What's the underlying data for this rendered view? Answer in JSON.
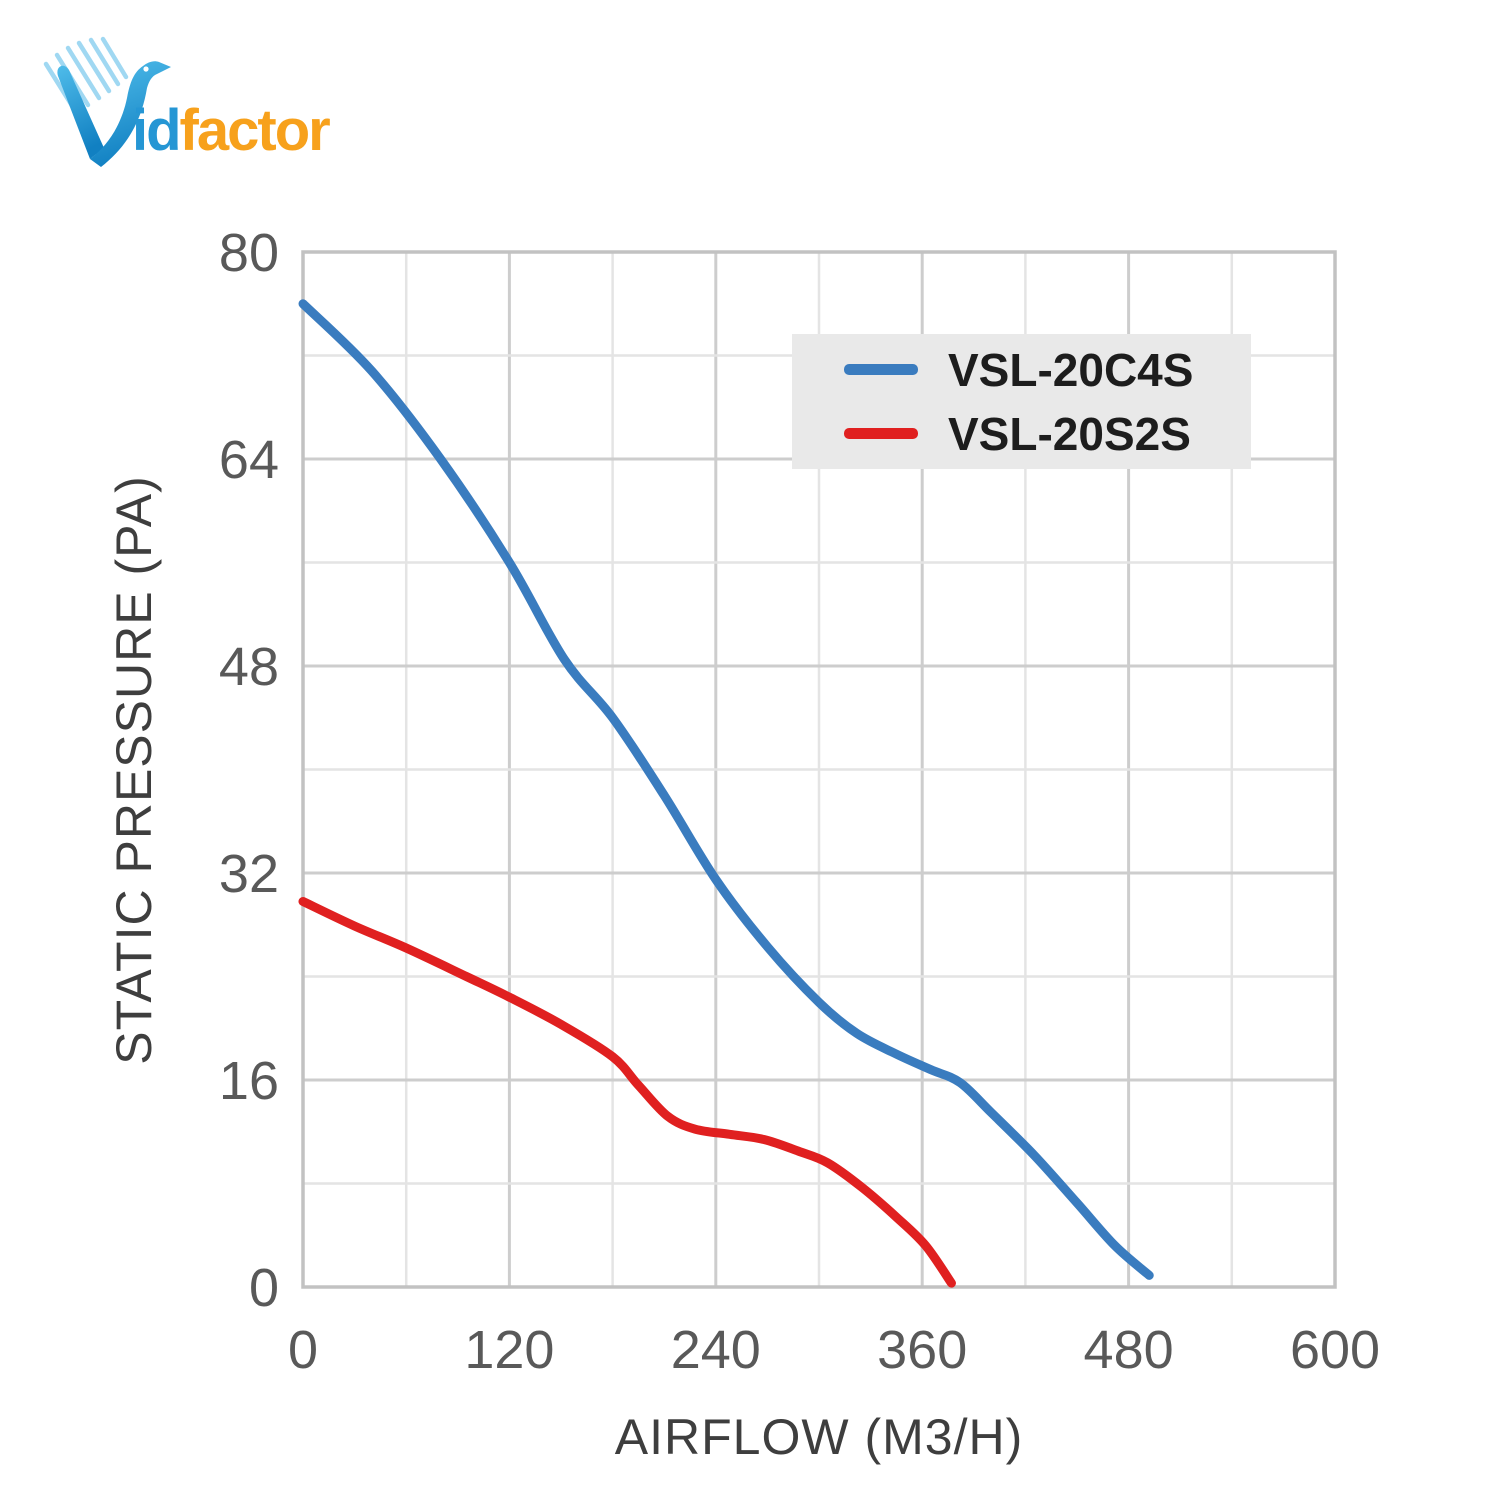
{
  "logo": {
    "text_id": "id",
    "text_factor": "factor",
    "blue": "#2596d4",
    "orange": "#f7a11c"
  },
  "chart_data": {
    "type": "line",
    "title": "",
    "xlabel": "AIRFLOW (M3/H)",
    "ylabel": "STATIC PRESSURE (PA)",
    "xlim": [
      0,
      600
    ],
    "ylim": [
      0,
      80
    ],
    "xticks": [
      0,
      120,
      240,
      360,
      480,
      600
    ],
    "yticks": [
      0,
      16,
      32,
      48,
      64,
      80
    ],
    "x_minor_step": 60,
    "y_minor_step": 8,
    "grid": true,
    "legend_position": "top-right",
    "colors": {
      "grid_minor": "#e4e4e4",
      "grid_major": "#cdcdcd",
      "border": "#c2c2c2",
      "tick_label": "#595959",
      "axis_title": "#3e3e3e",
      "legend_bg": "#e9e9e9",
      "legend_text": "#1d1d1d"
    },
    "series": [
      {
        "name": "VSL-20C4S",
        "color": "#3a7cbf",
        "points": [
          [
            0,
            76
          ],
          [
            40,
            70.8
          ],
          [
            80,
            64
          ],
          [
            120,
            56
          ],
          [
            152,
            48.5
          ],
          [
            180,
            44
          ],
          [
            210,
            38
          ],
          [
            240,
            31.5
          ],
          [
            270,
            26.3
          ],
          [
            300,
            22
          ],
          [
            322,
            19.6
          ],
          [
            345,
            18
          ],
          [
            365,
            16.8
          ],
          [
            382,
            15.8
          ],
          [
            400,
            13.5
          ],
          [
            425,
            10.2
          ],
          [
            450,
            6.5
          ],
          [
            472,
            3.2
          ],
          [
            492,
            0.9
          ]
        ]
      },
      {
        "name": "VSL-20S2S",
        "color": "#e02020",
        "points": [
          [
            0,
            29.8
          ],
          [
            30,
            27.9
          ],
          [
            60,
            26.2
          ],
          [
            95,
            24
          ],
          [
            120,
            22.4
          ],
          [
            150,
            20.3
          ],
          [
            180,
            17.8
          ],
          [
            195,
            15.6
          ],
          [
            212,
            13.2
          ],
          [
            228,
            12.2
          ],
          [
            248,
            11.8
          ],
          [
            268,
            11.4
          ],
          [
            288,
            10.5
          ],
          [
            305,
            9.6
          ],
          [
            325,
            7.7
          ],
          [
            345,
            5.4
          ],
          [
            362,
            3.2
          ],
          [
            377,
            0.3
          ]
        ]
      }
    ]
  }
}
